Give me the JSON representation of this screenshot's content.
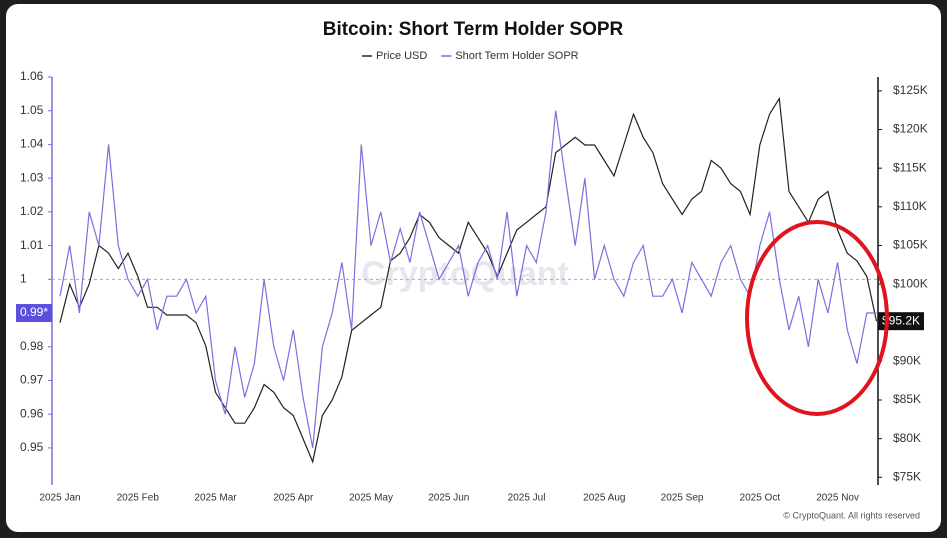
{
  "chart_data": {
    "type": "line",
    "title": "Bitcoin: Short Term Holder SOPR",
    "watermark": "CryptoQuant",
    "copyright": "© CryptoQuant. All rights reserved",
    "categories": [
      "2025 Jan",
      null,
      null,
      null,
      null,
      null,
      null,
      null,
      "2025 Feb",
      null,
      null,
      null,
      null,
      null,
      null,
      null,
      "2025 Mar",
      null,
      null,
      null,
      null,
      null,
      null,
      null,
      "2025 Apr",
      null,
      null,
      null,
      null,
      null,
      null,
      null,
      "2025 May",
      null,
      null,
      null,
      null,
      null,
      null,
      null,
      "2025 Jun",
      null,
      null,
      null,
      null,
      null,
      null,
      null,
      "2025 Jul",
      null,
      null,
      null,
      null,
      null,
      null,
      null,
      "2025 Aug",
      null,
      null,
      null,
      null,
      null,
      null,
      null,
      "2025 Sep",
      null,
      null,
      null,
      null,
      null,
      null,
      null,
      "2025 Oct",
      null,
      null,
      null,
      null,
      null,
      null,
      null,
      "2025 Nov",
      null,
      null,
      null,
      null
    ],
    "series": [
      {
        "name": "Price USD",
        "color": "#222222",
        "axis": "y2",
        "last_label": "$95.2K",
        "values": [
          95000,
          100000,
          97000,
          100000,
          105000,
          104000,
          102000,
          104000,
          101000,
          97000,
          97000,
          96000,
          96000,
          96000,
          95000,
          92000,
          86000,
          84000,
          82000,
          82000,
          84000,
          87000,
          86000,
          84000,
          83000,
          80000,
          77000,
          83000,
          85000,
          88000,
          94000,
          95000,
          96000,
          97000,
          103000,
          104000,
          106000,
          109000,
          108000,
          106000,
          105000,
          104000,
          108000,
          106000,
          104000,
          101000,
          104000,
          107000,
          108000,
          109000,
          110000,
          117000,
          118000,
          119000,
          118000,
          118000,
          116000,
          114000,
          118000,
          122000,
          119000,
          117000,
          113000,
          111000,
          109000,
          111000,
          112000,
          116000,
          115000,
          113000,
          112000,
          109000,
          118000,
          122000,
          124000,
          112000,
          110000,
          108000,
          111000,
          112000,
          107000,
          104000,
          103000,
          101000,
          95200
        ]
      },
      {
        "name": "Short Term Holder SOPR",
        "color": "#7b6fde",
        "axis": "y",
        "last_label": "0.99*",
        "values": [
          0.995,
          1.01,
          0.99,
          1.02,
          1.01,
          1.04,
          1.01,
          1.0,
          0.995,
          1.0,
          0.985,
          0.995,
          0.995,
          1.0,
          0.99,
          0.995,
          0.97,
          0.96,
          0.98,
          0.965,
          0.975,
          1.0,
          0.98,
          0.97,
          0.985,
          0.965,
          0.95,
          0.98,
          0.99,
          1.005,
          0.985,
          1.04,
          1.01,
          1.02,
          1.005,
          1.015,
          1.005,
          1.02,
          1.01,
          1.0,
          1.005,
          1.01,
          0.995,
          1.005,
          1.01,
          1.0,
          1.02,
          0.995,
          1.01,
          1.005,
          1.02,
          1.05,
          1.03,
          1.01,
          1.03,
          1.0,
          1.01,
          1.0,
          0.995,
          1.005,
          1.01,
          0.995,
          0.995,
          1.0,
          0.99,
          1.005,
          1.0,
          0.995,
          1.005,
          1.01,
          1.0,
          0.995,
          1.01,
          1.02,
          1.0,
          0.985,
          0.995,
          0.98,
          1.0,
          0.99,
          1.005,
          0.985,
          0.975,
          0.99,
          0.99
        ]
      }
    ],
    "reference_line": 1,
    "ylim": [
      0.939,
      1.06
    ],
    "yticks": [
      0.95,
      0.96,
      0.97,
      0.98,
      0.99,
      1,
      1.01,
      1.02,
      1.03,
      1.04,
      1.05,
      1.06
    ],
    "y2lim": [
      74000,
      126800
    ],
    "y2ticks": [
      {
        "value": 75000,
        "label": "$75K"
      },
      {
        "value": 80000,
        "label": "$80K"
      },
      {
        "value": 85000,
        "label": "$85K"
      },
      {
        "value": 90000,
        "label": "$90K"
      },
      {
        "value": 95000,
        "label": "$95K"
      },
      {
        "value": 100000,
        "label": "$100K"
      },
      {
        "value": 105000,
        "label": "$105K"
      },
      {
        "value": 110000,
        "label": "$110K"
      },
      {
        "value": 115000,
        "label": "$115K"
      },
      {
        "value": 120000,
        "label": "$120K"
      },
      {
        "value": 125000,
        "label": "$125K"
      }
    ]
  }
}
